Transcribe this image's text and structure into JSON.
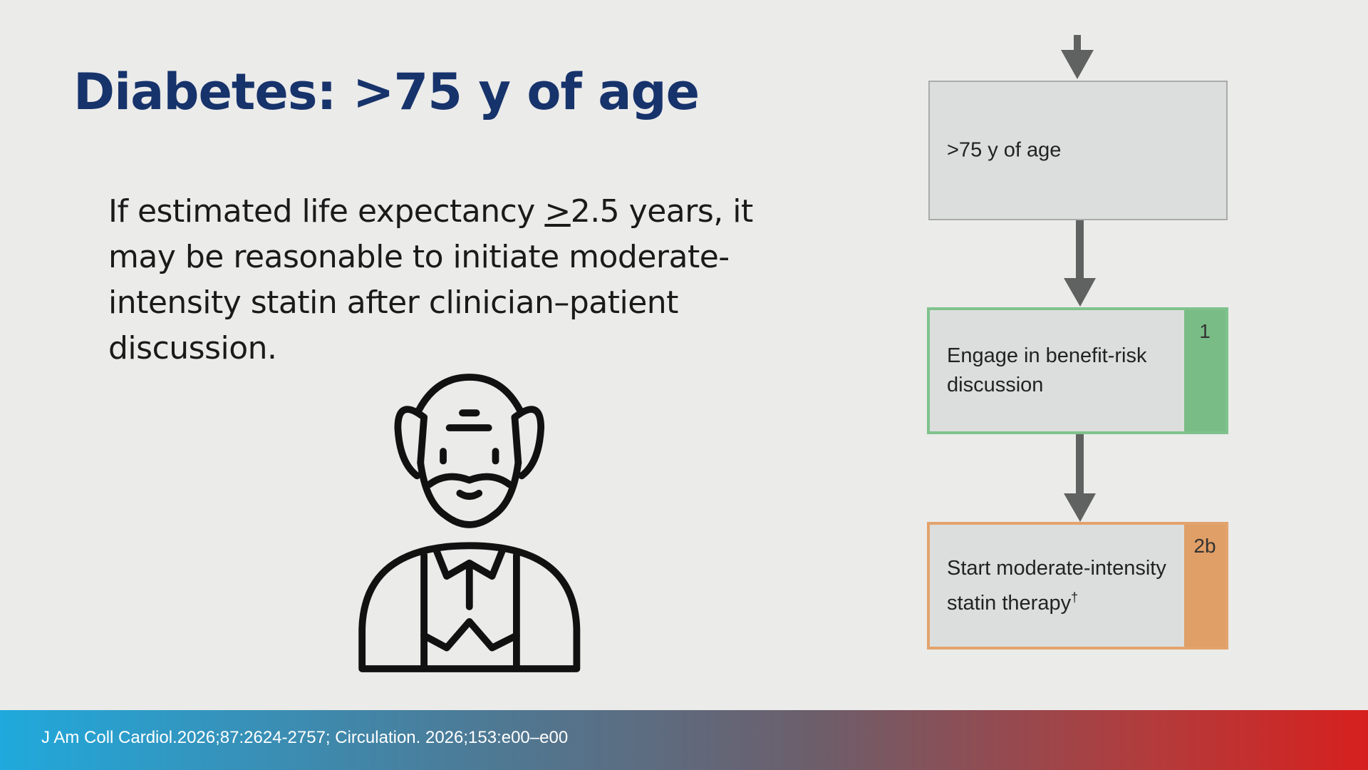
{
  "header": {
    "title": "Diabetes: >75 y of age"
  },
  "body": {
    "parts": [
      "If estimated life expectancy ",
      ">",
      "2.5 years, it may be reasonable to initiate moderate-intensity statin after clinician–patient discussion."
    ]
  },
  "flowchart": {
    "nodes": [
      {
        "label": ">75 y of age"
      },
      {
        "label": "Engage in benefit-risk discussion",
        "class": "1"
      },
      {
        "label": "Start moderate-intensity statin therapy",
        "footnote": "†",
        "class": "2b"
      }
    ]
  },
  "footer": {
    "citation": "J Am Coll Cardiol.2026;87:2624-2757; Circulation. 2026;153:e00–e00"
  }
}
